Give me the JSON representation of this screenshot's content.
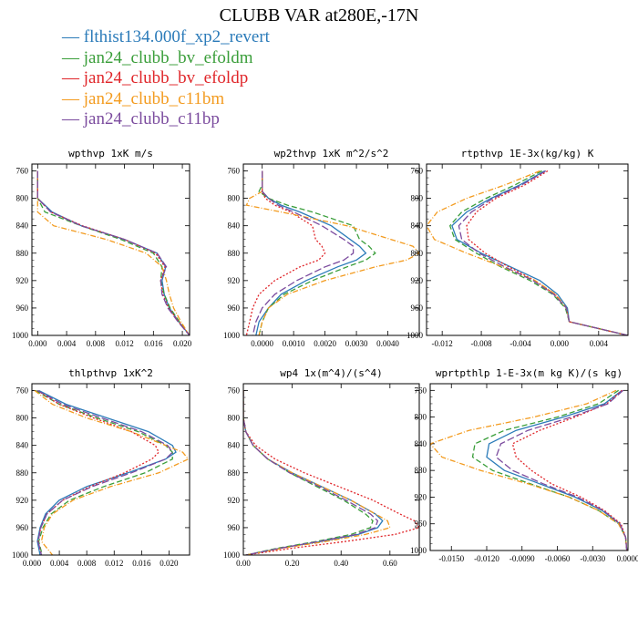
{
  "title": "CLUBB VAR at280E,-17N",
  "series": [
    {
      "name": "flthist134.000f_xp2_revert",
      "color": "#2b7bb9",
      "dash": ""
    },
    {
      "name": "jan24_clubb_bv_efoldm",
      "color": "#3a9e3a",
      "dash": "6,3"
    },
    {
      "name": "jan24_clubb_bv_efoldp",
      "color": "#e0262a",
      "dash": "2,2"
    },
    {
      "name": "jan24_clubb_c11bm",
      "color": "#f39b1f",
      "dash": "6,2,1,2"
    },
    {
      "name": "jan24_clubb_c11bp",
      "color": "#7b4b9e",
      "dash": "8,3"
    }
  ],
  "chart_data": [
    {
      "type": "line",
      "title": "wpthvp  1xK m/s",
      "xlim": [
        -0.0008,
        0.021
      ],
      "xticks": [
        0.0,
        0.004,
        0.008,
        0.012,
        0.016,
        0.02
      ],
      "xtick_labels": [
        "0.000",
        "0.004",
        "0.008",
        "0.012",
        "0.016",
        "0.020"
      ],
      "ylim": [
        750,
        1000
      ],
      "yticks": [
        760,
        800,
        840,
        880,
        920,
        960,
        1000
      ],
      "ytick_labels": [
        "760",
        "800",
        "840",
        "880",
        "920",
        "960",
        "1000"
      ],
      "y": [
        760,
        780,
        800,
        820,
        840,
        860,
        880,
        900,
        920,
        940,
        960,
        980,
        1000
      ],
      "series": [
        {
          "x": [
            0.0,
            0.0,
            0.0,
            0.002,
            0.006,
            0.012,
            0.0165,
            0.0177,
            0.0172,
            0.0175,
            0.0182,
            0.0195,
            0.021
          ]
        },
        {
          "x": [
            0.0,
            0.0,
            0.0,
            0.001,
            0.006,
            0.0115,
            0.016,
            0.0172,
            0.017,
            0.0175,
            0.0183,
            0.0196,
            0.021
          ]
        },
        {
          "x": [
            0.0,
            0.0,
            0.0,
            0.0018,
            0.0062,
            0.012,
            0.0163,
            0.0176,
            0.017,
            0.0173,
            0.0181,
            0.0195,
            0.021
          ]
        },
        {
          "x": [
            0.0,
            0.0,
            0.0,
            0.0,
            0.0022,
            0.0095,
            0.015,
            0.0172,
            0.0178,
            0.0182,
            0.0188,
            0.0198,
            0.021
          ]
        },
        {
          "x": [
            0.0,
            0.0,
            0.0,
            0.0018,
            0.006,
            0.012,
            0.0165,
            0.0178,
            0.017,
            0.0172,
            0.018,
            0.0194,
            0.021
          ]
        }
      ]
    },
    {
      "type": "line",
      "title": "wp2thvp  1xK m^2/s^2",
      "xlim": [
        -0.0006,
        0.005
      ],
      "xticks": [
        0.0,
        0.001,
        0.002,
        0.003,
        0.004
      ],
      "xtick_labels": [
        "0.0000",
        "0.0010",
        "0.0020",
        "0.0030",
        "0.0040"
      ],
      "ylim": [
        750,
        1000
      ],
      "yticks": [
        760,
        800,
        840,
        880,
        920,
        960,
        1000
      ],
      "ytick_labels": [
        "760",
        "800",
        "840",
        "880",
        "920",
        "960",
        "1000"
      ],
      "y": [
        760,
        780,
        790,
        800,
        810,
        820,
        840,
        860,
        870,
        880,
        890,
        900,
        920,
        940,
        960,
        980,
        1000
      ],
      "series": [
        {
          "x": [
            0.0,
            0.0,
            0.0,
            0.0002,
            0.0006,
            0.0012,
            0.0022,
            0.0028,
            0.0031,
            0.0033,
            0.003,
            0.0024,
            0.0014,
            0.0006,
            0.0002,
            -0.0001,
            -0.0002
          ]
        },
        {
          "x": [
            0.0,
            0.0,
            -0.0001,
            0.0002,
            0.0008,
            0.0016,
            0.0029,
            0.0031,
            0.0034,
            0.0036,
            0.0033,
            0.0027,
            0.0016,
            0.0007,
            0.0002,
            0.0,
            -0.0001
          ]
        },
        {
          "x": [
            0.0,
            0.0,
            0.0,
            0.0001,
            0.0004,
            0.0009,
            0.0016,
            0.0017,
            0.0019,
            0.002,
            0.0018,
            0.0012,
            0.0004,
            -0.0001,
            -0.0003,
            -0.0004,
            -0.0005
          ]
        },
        {
          "x": [
            0.0,
            0.0,
            0.0,
            -0.0004,
            -0.0005,
            0.0006,
            0.0027,
            0.0041,
            0.0048,
            0.005,
            0.0046,
            0.0036,
            0.002,
            0.0008,
            0.0002,
            0.0,
            -0.0001
          ]
        },
        {
          "x": [
            0.0,
            0.0,
            0.0,
            0.0002,
            0.0005,
            0.001,
            0.0019,
            0.0026,
            0.0029,
            0.0029,
            0.0026,
            0.002,
            0.0011,
            0.0004,
            0.0,
            -0.0002,
            -0.0003
          ]
        }
      ]
    },
    {
      "type": "line",
      "title": "rtpthvp  1E-3x(kg/kg) K",
      "xlim": [
        -0.0136,
        0.007
      ],
      "xticks": [
        -0.012,
        -0.008,
        -0.004,
        0.0,
        0.004
      ],
      "xtick_labels": [
        "-0.012",
        "-0.008",
        "-0.004",
        "0.000",
        "0.004"
      ],
      "ylim": [
        750,
        1000
      ],
      "yticks": [
        760,
        800,
        840,
        880,
        920,
        960,
        1000
      ],
      "ytick_labels": [
        "760",
        "800",
        "840",
        "880",
        "920",
        "960",
        "1000"
      ],
      "y": [
        760,
        780,
        800,
        820,
        840,
        860,
        880,
        900,
        920,
        940,
        960,
        980,
        1000
      ],
      "series": [
        {
          "x": [
            -0.0015,
            -0.004,
            -0.007,
            -0.0095,
            -0.011,
            -0.0105,
            -0.008,
            -0.005,
            -0.002,
            -0.0002,
            0.0008,
            0.001,
            0.007
          ]
        },
        {
          "x": [
            -0.0018,
            -0.0045,
            -0.0075,
            -0.01,
            -0.0112,
            -0.0107,
            -0.0085,
            -0.006,
            -0.003,
            -0.0007,
            0.0006,
            0.001,
            0.007
          ]
        },
        {
          "x": [
            -0.0012,
            -0.0035,
            -0.0065,
            -0.0085,
            -0.0095,
            -0.0093,
            -0.0076,
            -0.0052,
            -0.0025,
            -0.0005,
            0.0007,
            0.001,
            0.007
          ]
        },
        {
          "x": [
            -0.002,
            -0.0055,
            -0.0095,
            -0.0125,
            -0.0136,
            -0.0128,
            -0.0095,
            -0.0058,
            -0.0025,
            -0.0004,
            0.0007,
            0.001,
            0.007
          ]
        },
        {
          "x": [
            -0.0014,
            -0.0038,
            -0.0068,
            -0.009,
            -0.0103,
            -0.01,
            -0.0082,
            -0.0056,
            -0.0027,
            -0.0006,
            0.0007,
            0.001,
            0.007
          ]
        }
      ]
    },
    {
      "type": "line",
      "title": "thlpthvp  1xK^2",
      "xlim": [
        0.0,
        0.023
      ],
      "xticks": [
        0.0,
        0.004,
        0.008,
        0.012,
        0.016,
        0.02
      ],
      "xtick_labels": [
        "0.000",
        "0.004",
        "0.008",
        "0.012",
        "0.016",
        "0.020"
      ],
      "ylim": [
        750,
        1000
      ],
      "yticks": [
        760,
        800,
        840,
        880,
        920,
        960,
        1000
      ],
      "ytick_labels": [
        "760",
        "800",
        "840",
        "880",
        "920",
        "960",
        "1000"
      ],
      "y": [
        760,
        780,
        800,
        820,
        840,
        850,
        860,
        880,
        900,
        920,
        940,
        960,
        980,
        1000
      ],
      "series": [
        {
          "x": [
            0.001,
            0.005,
            0.011,
            0.017,
            0.0205,
            0.021,
            0.0195,
            0.014,
            0.008,
            0.004,
            0.002,
            0.0012,
            0.0008,
            0.0012
          ]
        },
        {
          "x": [
            0.0005,
            0.004,
            0.0095,
            0.0155,
            0.0195,
            0.0205,
            0.0205,
            0.0165,
            0.0105,
            0.0055,
            0.0028,
            0.0016,
            0.001,
            0.0015
          ]
        },
        {
          "x": [
            0.0008,
            0.004,
            0.009,
            0.0145,
            0.018,
            0.0185,
            0.0175,
            0.0135,
            0.0085,
            0.0045,
            0.0022,
            0.0013,
            0.0009,
            0.0014
          ]
        },
        {
          "x": [
            0.0004,
            0.003,
            0.008,
            0.0145,
            0.0195,
            0.022,
            0.0228,
            0.0185,
            0.0115,
            0.006,
            0.003,
            0.0018,
            0.0014,
            0.003
          ]
        },
        {
          "x": [
            0.0008,
            0.0045,
            0.0102,
            0.016,
            0.0198,
            0.0205,
            0.0195,
            0.0145,
            0.0088,
            0.0045,
            0.0022,
            0.0013,
            0.0009,
            0.0014
          ]
        }
      ]
    },
    {
      "type": "line",
      "title": "wp4  1x(m^4)/(s^4)",
      "xlim": [
        0.0,
        0.72
      ],
      "xticks": [
        0.0,
        0.2,
        0.4,
        0.6
      ],
      "xtick_labels": [
        "0.00",
        "0.20",
        "0.40",
        "0.60"
      ],
      "ylim": [
        750,
        1000
      ],
      "yticks": [
        760,
        800,
        840,
        880,
        920,
        960,
        1000
      ],
      "ytick_labels": [
        "760",
        "800",
        "840",
        "880",
        "920",
        "960",
        "1000"
      ],
      "y": [
        760,
        800,
        820,
        840,
        860,
        880,
        900,
        920,
        940,
        950,
        960,
        970,
        980,
        990,
        1000
      ],
      "series": [
        {
          "x": [
            0.0,
            0.0,
            0.01,
            0.04,
            0.1,
            0.2,
            0.32,
            0.44,
            0.54,
            0.57,
            0.55,
            0.47,
            0.32,
            0.15,
            0.01
          ]
        },
        {
          "x": [
            0.0,
            0.0,
            0.01,
            0.04,
            0.1,
            0.19,
            0.3,
            0.41,
            0.5,
            0.53,
            0.52,
            0.44,
            0.3,
            0.14,
            0.01
          ]
        },
        {
          "x": [
            0.0,
            0.0,
            0.01,
            0.05,
            0.13,
            0.25,
            0.39,
            0.53,
            0.64,
            0.7,
            0.72,
            0.62,
            0.42,
            0.2,
            0.01
          ]
        },
        {
          "x": [
            0.0,
            0.0,
            0.01,
            0.04,
            0.1,
            0.2,
            0.32,
            0.44,
            0.54,
            0.59,
            0.6,
            0.5,
            0.34,
            0.16,
            0.01
          ]
        },
        {
          "x": [
            0.0,
            0.0,
            0.01,
            0.04,
            0.1,
            0.19,
            0.31,
            0.42,
            0.52,
            0.55,
            0.54,
            0.46,
            0.31,
            0.15,
            0.01
          ]
        }
      ]
    },
    {
      "type": "line",
      "title": "wprtpthlp  1-E-3x(m kg K)/(s kg)",
      "xlim": [
        -0.0168,
        0.0
      ],
      "xticks": [
        -0.015,
        -0.012,
        -0.009,
        -0.006,
        -0.003,
        0.0
      ],
      "xtick_labels": [
        "-0.0150",
        "-0.0120",
        "-0.0090",
        "-0.0060",
        "-0.0030",
        "0.0000"
      ],
      "ylim": [
        750,
        1000
      ],
      "yticks": [
        760,
        800,
        840,
        880,
        920,
        960,
        1000
      ],
      "ytick_labels": [
        "760",
        "800",
        "840",
        "880",
        "920",
        "960",
        "1000"
      ],
      "y": [
        760,
        780,
        800,
        820,
        840,
        860,
        880,
        900,
        920,
        940,
        960,
        980,
        1000
      ],
      "series": [
        {
          "x": [
            -0.0005,
            -0.002,
            -0.0055,
            -0.0095,
            -0.0118,
            -0.012,
            -0.0105,
            -0.0075,
            -0.0045,
            -0.0022,
            -0.0007,
            -0.0002,
            -0.0001
          ]
        },
        {
          "x": [
            -0.0008,
            -0.0025,
            -0.006,
            -0.0105,
            -0.013,
            -0.0132,
            -0.0115,
            -0.0083,
            -0.005,
            -0.0025,
            -0.0008,
            -0.0002,
            -0.0001
          ]
        },
        {
          "x": [
            -0.0005,
            -0.0018,
            -0.0045,
            -0.0075,
            -0.0098,
            -0.0095,
            -0.0082,
            -0.0065,
            -0.004,
            -0.002,
            -0.0006,
            -0.0002,
            -0.0001
          ]
        },
        {
          "x": [
            -0.001,
            -0.0035,
            -0.008,
            -0.0135,
            -0.0168,
            -0.0158,
            -0.0125,
            -0.0085,
            -0.005,
            -0.0025,
            -0.0008,
            -0.0002,
            -0.0001
          ]
        },
        {
          "x": [
            -0.0004,
            -0.0017,
            -0.0048,
            -0.0085,
            -0.0108,
            -0.0112,
            -0.0098,
            -0.0072,
            -0.0043,
            -0.0021,
            -0.0007,
            -0.0002,
            -0.0001
          ]
        }
      ]
    }
  ]
}
